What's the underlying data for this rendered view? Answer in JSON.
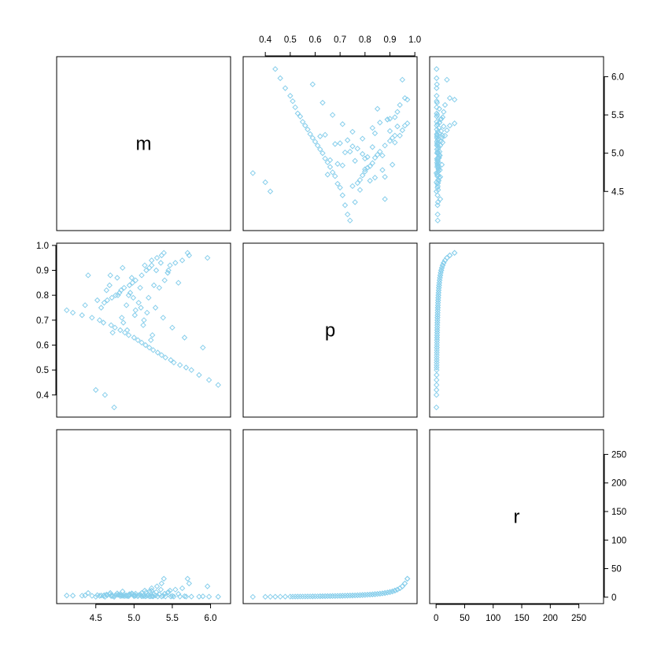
{
  "chart_data": {
    "type": "scatter",
    "layout": "pairs-matrix",
    "variables": [
      "m",
      "p",
      "r"
    ],
    "point_color": "#87CEEB",
    "point_shape": "diamond-open",
    "ranges": {
      "m": [
        4.05,
        6.2
      ],
      "p": [
        0.33,
        0.99
      ],
      "r": [
        -3,
        285
      ]
    },
    "ticks": {
      "m": {
        "values": [
          4.5,
          5.0,
          5.5,
          6.0
        ],
        "labels": [
          "4.5",
          "5.0",
          "5.5",
          "6.0"
        ]
      },
      "p": {
        "values": [
          0.4,
          0.5,
          0.6,
          0.7,
          0.8,
          0.9,
          1.0
        ],
        "labels": [
          "0.4",
          "0.5",
          "0.6",
          "0.7",
          "0.8",
          "0.9",
          "1.0"
        ]
      },
      "r": {
        "values": [
          0,
          50,
          100,
          150,
          200,
          250
        ],
        "labels": [
          "0",
          "50",
          "100",
          "150",
          "200",
          "250"
        ]
      }
    },
    "axis_placement": {
      "top": [
        "p"
      ],
      "bottom": [
        "m",
        "r"
      ],
      "left": [
        "p"
      ],
      "right": [
        "m",
        "r"
      ]
    },
    "grid": false,
    "relation": "r = p / (1 - p)",
    "samples": {
      "m": [
        5.96,
        5.7,
        5.72,
        5.63,
        5.54,
        5.47,
        5.45,
        5.44,
        5.39,
        5.36,
        5.3,
        5.23,
        5.23,
        5.2,
        5.16,
        5.1,
        5.02,
        4.98,
        4.94,
        4.87,
        4.83,
        4.81,
        4.76,
        4.71,
        4.65,
        4.61,
        4.36,
        4.57,
        4.12,
        4.2,
        4.32,
        4.45,
        4.55,
        4.6,
        4.7,
        4.75,
        4.82,
        4.88,
        4.93,
        5.0,
        5.05,
        5.1,
        5.15,
        5.2,
        5.25,
        5.31,
        5.36,
        5.41,
        5.48,
        5.52,
        5.6,
        5.68,
        5.75,
        5.85,
        5.98,
        6.1,
        4.5,
        4.62,
        4.74,
        4.85,
        4.97,
        5.08,
        5.19,
        5.28,
        5.38,
        5.5,
        5.66,
        5.9,
        4.4,
        4.68,
        4.79,
        4.9,
        5.01,
        5.12,
        5.24,
        5.35,
        5.44,
        5.58,
        4.95,
        5.06,
        5.17,
        4.86,
        4.72,
        5.29,
        5.4,
        4.64,
        4.52,
        5.02,
        5.13,
        4.91,
        5.22,
        4.78,
        5.33,
        4.99,
        5.09,
        4.84,
        5.14,
        4.69,
        5.26,
        4.93
      ],
      "p": [
        0.95,
        0.97,
        0.96,
        0.94,
        0.93,
        0.92,
        0.9,
        0.89,
        0.97,
        0.96,
        0.95,
        0.94,
        0.92,
        0.91,
        0.9,
        0.88,
        0.86,
        0.85,
        0.84,
        0.83,
        0.82,
        0.81,
        0.8,
        0.79,
        0.78,
        0.77,
        0.76,
        0.75,
        0.74,
        0.73,
        0.72,
        0.71,
        0.7,
        0.69,
        0.68,
        0.67,
        0.66,
        0.65,
        0.64,
        0.63,
        0.62,
        0.61,
        0.6,
        0.59,
        0.58,
        0.57,
        0.56,
        0.55,
        0.54,
        0.53,
        0.52,
        0.51,
        0.5,
        0.48,
        0.46,
        0.44,
        0.42,
        0.4,
        0.35,
        0.91,
        0.87,
        0.83,
        0.79,
        0.75,
        0.71,
        0.67,
        0.63,
        0.59,
        0.88,
        0.84,
        0.8,
        0.76,
        0.72,
        0.68,
        0.64,
        0.93,
        0.89,
        0.85,
        0.81,
        0.77,
        0.73,
        0.69,
        0.65,
        0.9,
        0.86,
        0.82,
        0.78,
        0.74,
        0.7,
        0.66,
        0.62,
        0.87,
        0.83,
        0.79,
        0.75,
        0.71,
        0.92,
        0.88,
        0.84,
        0.8
      ]
    }
  }
}
